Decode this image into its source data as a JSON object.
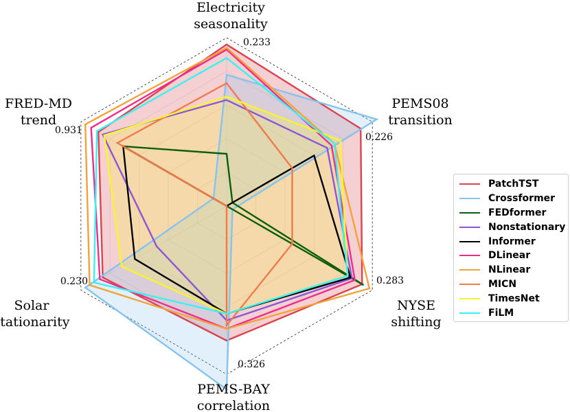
{
  "chart_data": {
    "type": "radar",
    "axes": [
      {
        "title_lines": [
          "Electricity",
          "seasonality"
        ],
        "max_label": "0.233"
      },
      {
        "title_lines": [
          "PEMS08",
          "transition"
        ],
        "max_label": "0.226"
      },
      {
        "title_lines": [
          "NYSE",
          "shifting"
        ],
        "max_label": "0.283"
      },
      {
        "title_lines": [
          "PEMS-BAY",
          "correlation"
        ],
        "max_label": "0.326"
      },
      {
        "title_lines": [
          "Solar",
          "stationarity"
        ],
        "max_label": "0.230"
      },
      {
        "title_lines": [
          "FRED-MD",
          "trend"
        ],
        "max_label": "0.931"
      }
    ],
    "value_scale": "normalized fraction of each axis maximum",
    "grid": true,
    "legend_position": "right",
    "series": [
      {
        "name": "PatchTST",
        "color": "#d9444f",
        "fill": true,
        "values": [
          0.96,
          0.92,
          0.93,
          0.8,
          0.85,
          0.88
        ]
      },
      {
        "name": "Crossformer",
        "color": "#86c3ee",
        "fill": true,
        "values": [
          0.78,
          1.03,
          0.04,
          1.09,
          0.97,
          0.09
        ]
      },
      {
        "name": "FEDformer",
        "color": "#0b5e0b",
        "fill": false,
        "values": [
          0.31,
          0.04,
          0.94,
          0.0,
          0.0,
          0.71
        ]
      },
      {
        "name": "Nonstationary",
        "color": "#8a55d6",
        "fill": false,
        "values": [
          0.63,
          0.69,
          0.86,
          0.68,
          0.48,
          0.85
        ]
      },
      {
        "name": "Informer",
        "color": "#000000",
        "fill": false,
        "values": [
          0.0,
          0.6,
          0.85,
          0.64,
          0.63,
          0.71
        ]
      },
      {
        "name": "DLinear",
        "color": "#ee2d8b",
        "fill": false,
        "values": [
          0.93,
          0.72,
          0.88,
          0.73,
          0.87,
          0.93
        ]
      },
      {
        "name": "NLinear",
        "color": "#f4a13c",
        "fill": false,
        "values": [
          0.94,
          0.74,
          0.98,
          0.73,
          0.94,
          0.97
        ]
      },
      {
        "name": "MICN",
        "color": "#f07a4a",
        "fill": false,
        "values": [
          0.73,
          0.45,
          0.45,
          0.71,
          0.0,
          0.75
        ]
      },
      {
        "name": "TimesNet",
        "color": "#f8f530",
        "fill": true,
        "values": [
          0.65,
          0.78,
          0.83,
          0.64,
          0.72,
          0.84
        ]
      },
      {
        "name": "FiLM",
        "color": "#3cf0ef",
        "fill": false,
        "values": [
          0.88,
          0.74,
          0.83,
          0.64,
          0.91,
          0.89
        ]
      }
    ]
  }
}
